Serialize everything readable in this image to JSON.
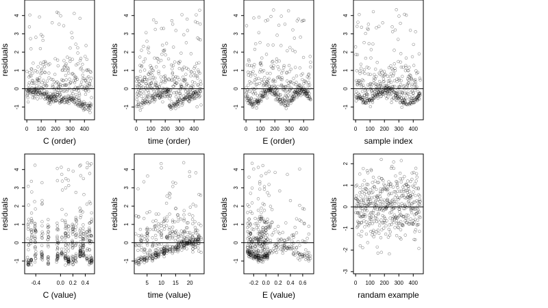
{
  "chart_data": [
    {
      "type": "scatter",
      "name": "C (order)",
      "xlabel": "C (order)",
      "ylabel": "residuals",
      "xlim": [
        -15,
        470
      ],
      "ylim": [
        -1.7,
        4.85
      ],
      "xticks": [
        0,
        100,
        200,
        300,
        400
      ],
      "xtick_labels": [
        "0",
        "100",
        "200",
        "300",
        "400"
      ],
      "yticks": [
        -1,
        0,
        1,
        2,
        3,
        4
      ],
      "ytick_labels": [
        "-1",
        "0",
        "1",
        "2",
        "3",
        "4"
      ],
      "hline": 0,
      "series": [
        {
          "gen": {
            "kind": "index",
            "n": 450,
            "pattern": "smooth_neg"
          }
        }
      ]
    },
    {
      "type": "scatter",
      "name": "time (order)",
      "xlabel": "time (order)",
      "ylabel": "residuals",
      "xlim": [
        -15,
        470
      ],
      "ylim": [
        -1.7,
        4.85
      ],
      "xticks": [
        0,
        100,
        200,
        300,
        400
      ],
      "xtick_labels": [
        "0",
        "100",
        "200",
        "300",
        "400"
      ],
      "yticks": [
        -1,
        0,
        1,
        2,
        3,
        4
      ],
      "ytick_labels": [
        "-1",
        "0",
        "1",
        "2",
        "3",
        "4"
      ],
      "hline": 0,
      "series": [
        {
          "gen": {
            "kind": "index",
            "n": 450,
            "pattern": "sawtooth"
          }
        }
      ]
    },
    {
      "type": "scatter",
      "name": "E (order)",
      "xlabel": "E (order)",
      "ylabel": "residuals",
      "xlim": [
        -15,
        470
      ],
      "ylim": [
        -1.7,
        4.85
      ],
      "xticks": [
        0,
        100,
        200,
        300,
        400
      ],
      "xtick_labels": [
        "0",
        "100",
        "200",
        "300",
        "400"
      ],
      "yticks": [
        -1,
        0,
        1,
        2,
        3,
        4
      ],
      "ytick_labels": [
        "-1",
        "0",
        "1",
        "2",
        "3",
        "4"
      ],
      "hline": 0,
      "series": [
        {
          "gen": {
            "kind": "index",
            "n": 450,
            "pattern": "wave"
          }
        }
      ]
    },
    {
      "type": "scatter",
      "name": "sample index",
      "xlabel": "sample index",
      "ylabel": "residuals",
      "xlim": [
        -15,
        470
      ],
      "ylim": [
        -1.7,
        4.85
      ],
      "xticks": [
        0,
        100,
        200,
        300,
        400
      ],
      "xtick_labels": [
        "0",
        "100",
        "200",
        "300",
        "400"
      ],
      "yticks": [
        -1,
        0,
        1,
        2,
        3,
        4
      ],
      "ytick_labels": [
        "-1",
        "0",
        "1",
        "2",
        "3",
        "4"
      ],
      "hline": 0,
      "series": [
        {
          "gen": {
            "kind": "index",
            "n": 450,
            "pattern": "wave2"
          }
        }
      ]
    },
    {
      "type": "scatter",
      "name": "C (value)",
      "xlabel": "C (value)",
      "ylabel": "residuals",
      "xlim": [
        -0.58,
        0.55
      ],
      "ylim": [
        -1.7,
        4.85
      ],
      "xticks": [
        -0.4,
        0.0,
        0.2,
        0.4
      ],
      "xtick_labels": [
        "-0.4",
        "0.0",
        "0.2",
        "0.4"
      ],
      "yticks": [
        -1,
        0,
        1,
        2,
        3,
        4
      ],
      "ytick_labels": [
        "-1",
        "0",
        "1",
        "2",
        "3",
        "4"
      ],
      "hline": 0,
      "series": [
        {
          "gen": {
            "kind": "value",
            "n": 450,
            "xmin": -0.52,
            "xmax": 0.5,
            "pattern": "cvalue"
          }
        }
      ]
    },
    {
      "type": "scatter",
      "name": "time (value)",
      "xlabel": "time (value)",
      "ylabel": "residuals",
      "xlim": [
        0.5,
        25
      ],
      "ylim": [
        -1.7,
        4.85
      ],
      "xticks": [
        5,
        10,
        15,
        20
      ],
      "xtick_labels": [
        "5",
        "10",
        "15",
        "20"
      ],
      "yticks": [
        -1,
        0,
        1,
        2,
        3,
        4
      ],
      "ytick_labels": [
        "-1",
        "0",
        "1",
        "2",
        "3",
        "4"
      ],
      "hline": 0,
      "series": [
        {
          "gen": {
            "kind": "value",
            "n": 450,
            "xmin": 1,
            "xmax": 24,
            "pattern": "tvalue"
          }
        }
      ]
    },
    {
      "type": "scatter",
      "name": "E (value)",
      "xlabel": "E (value)",
      "ylabel": "residuals",
      "xlim": [
        -0.36,
        0.78
      ],
      "ylim": [
        -1.7,
        4.85
      ],
      "xticks": [
        -0.2,
        0.0,
        0.2,
        0.4,
        0.6
      ],
      "xtick_labels": [
        "-0.2",
        "0.0",
        "0.2",
        "0.4",
        "0.6"
      ],
      "yticks": [
        -1,
        0,
        1,
        2,
        3,
        4
      ],
      "ytick_labels": [
        "-1",
        "0",
        "1",
        "2",
        "3",
        "4"
      ],
      "hline": 0,
      "series": [
        {
          "gen": {
            "kind": "value",
            "n": 450,
            "xmin": -0.32,
            "xmax": 0.72,
            "pattern": "evalue"
          }
        }
      ]
    },
    {
      "type": "scatter",
      "name": "randam example",
      "xlabel": "randam example",
      "ylabel": "residuals",
      "xlim": [
        -15,
        470
      ],
      "ylim": [
        -3.1,
        2.45
      ],
      "xticks": [
        0,
        100,
        200,
        300,
        400
      ],
      "xtick_labels": [
        "0",
        "100",
        "200",
        "300",
        "400"
      ],
      "yticks": [
        -3,
        -2,
        -1,
        0,
        1,
        2
      ],
      "ytick_labels": [
        "-3",
        "-2",
        "-1",
        "0",
        "1",
        "2"
      ],
      "hline": 0,
      "series": [
        {
          "gen": {
            "kind": "index",
            "n": 450,
            "pattern": "normal"
          }
        }
      ]
    }
  ]
}
